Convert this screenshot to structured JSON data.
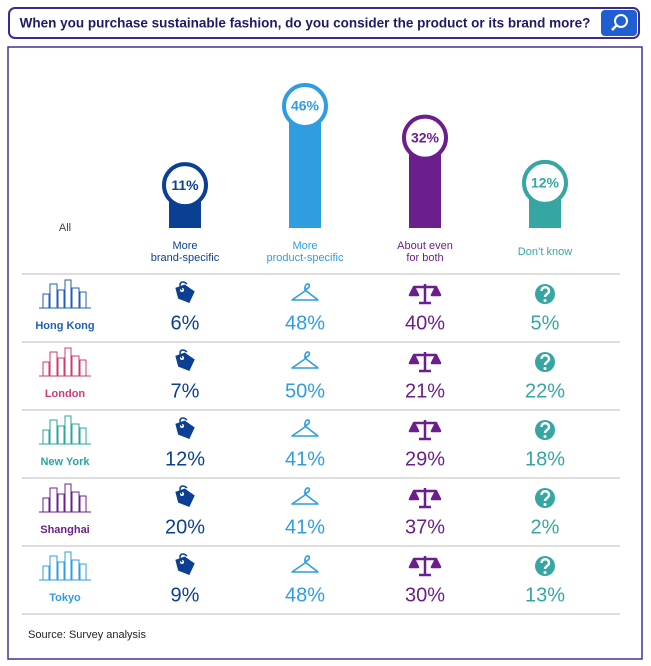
{
  "header": {
    "question": "When you purchase sustainable fashion, do you consider the product or its brand more?"
  },
  "chart_data": {
    "type": "lollipop",
    "row_label": "All",
    "categories": [
      "More\nbrand-specific",
      "More\nproduct-specific",
      "About even\nfor both",
      "Don’t know"
    ],
    "colors": [
      "#0b3f93",
      "#2f9de0",
      "#6b1f8c",
      "#35a6a2"
    ],
    "values": [
      11,
      46,
      32,
      12
    ],
    "value_labels": [
      "11%",
      "46%",
      "32%",
      "12%"
    ]
  },
  "table": {
    "rows": [
      {
        "city": "Hong Kong",
        "color": "#1f5fb4",
        "cells": [
          "6%",
          "48%",
          "40%",
          "5%"
        ]
      },
      {
        "city": "London",
        "color": "#d23a6e",
        "cells": [
          "7%",
          "50%",
          "21%",
          "22%"
        ]
      },
      {
        "city": "New York",
        "color": "#2aa6a0",
        "cells": [
          "12%",
          "41%",
          "29%",
          "18%"
        ]
      },
      {
        "city": "Shanghai",
        "color": "#6b1f8c",
        "cells": [
          "20%",
          "41%",
          "37%",
          "2%"
        ]
      },
      {
        "city": "Tokyo",
        "color": "#2f9de0",
        "cells": [
          "9%",
          "48%",
          "30%",
          "13%"
        ]
      }
    ]
  },
  "source": "Source: Survey analysis"
}
